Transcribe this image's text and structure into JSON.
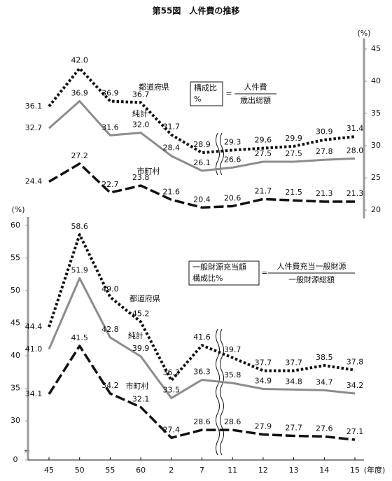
{
  "chart_data": [
    {
      "type": "line",
      "title": "第55図　人件費の推移",
      "ylabel": "(%)",
      "yaxis": "right",
      "ylim": [
        20,
        45
      ],
      "yticks": [
        20,
        25,
        30,
        35,
        40,
        45
      ],
      "formula": {
        "left": [
          "構成比",
          "%"
        ],
        "numerator": "人件費",
        "denominator": "歳出総額"
      },
      "series": [
        {
          "name": "都道府県",
          "color": "#111111",
          "style": "dotted",
          "values": [
            36.1,
            42.0,
            36.9,
            36.7,
            31.7,
            28.9,
            29.3,
            29.6,
            29.9,
            30.9,
            31.4
          ],
          "value_labels": [
            "36.1",
            "42.0",
            "36.9",
            "36.7",
            "31.7",
            "28.9",
            "29.3",
            "29.6",
            "29.9",
            "30.9",
            "31.4"
          ]
        },
        {
          "name": "純計",
          "color": "#8c8c8c",
          "style": "solid",
          "values": [
            32.7,
            36.9,
            31.6,
            32.0,
            28.4,
            26.1,
            26.6,
            27.5,
            27.5,
            27.8,
            28.0
          ],
          "value_labels": [
            "32.7",
            "36.9",
            "31.6",
            "32.0",
            "28.4",
            "26.1",
            "26.6",
            "27.5",
            "27.5",
            "27.8",
            "28.0"
          ]
        },
        {
          "name": "市町村",
          "color": "#111111",
          "style": "dashed",
          "values": [
            24.4,
            27.2,
            22.7,
            23.8,
            21.6,
            20.4,
            20.6,
            21.7,
            21.5,
            21.3,
            21.3
          ],
          "value_labels": [
            "24.4",
            "27.2",
            "22.7",
            "23.8",
            "21.6",
            "20.4",
            "20.6",
            "21.7",
            "21.5",
            "21.3",
            "21.3"
          ]
        }
      ]
    },
    {
      "type": "line",
      "ylabel": "(%)",
      "yaxis": "left",
      "xlabel": "(年度)",
      "categories": [
        "45",
        "50",
        "55",
        "60",
        "2",
        "7",
        "11",
        "12",
        "13",
        "14",
        "15"
      ],
      "ylim": [
        0,
        60
      ],
      "ybreak": [
        0,
        27
      ],
      "yticks": [
        0,
        30,
        35,
        40,
        45,
        50,
        55,
        60
      ],
      "formula": {
        "left": [
          "一般財源充当額",
          "構成比%"
        ],
        "numerator": "人件費充当一般財源",
        "denominator": "一般財源総額"
      },
      "series": [
        {
          "name": "都道府県",
          "color": "#111111",
          "style": "dotted",
          "values": [
            44.4,
            58.6,
            49.0,
            45.2,
            36.2,
            41.6,
            39.7,
            37.7,
            37.7,
            38.5,
            37.8
          ],
          "value_labels": [
            "44.4",
            "58.6",
            "49.0",
            "45.2",
            "36.2",
            "41.6",
            "39.7",
            "37.7",
            "37.7",
            "38.5",
            "37.8"
          ]
        },
        {
          "name": "純計",
          "color": "#8c8c8c",
          "style": "solid",
          "values": [
            41.0,
            51.9,
            42.8,
            39.9,
            33.5,
            36.3,
            35.8,
            34.9,
            34.8,
            34.7,
            34.2
          ],
          "value_labels": [
            "41.0",
            "51.9",
            "42.8",
            "39.9",
            "33.5",
            "36.3",
            "35.8",
            "34.9",
            "34.8",
            "34.7",
            "34.2"
          ]
        },
        {
          "name": "市町村",
          "color": "#111111",
          "style": "dashed",
          "values": [
            34.1,
            41.5,
            34.2,
            32.1,
            27.4,
            28.6,
            28.6,
            27.9,
            27.7,
            27.6,
            27.1
          ],
          "value_labels": [
            "34.1",
            "41.5",
            "34.2",
            "32.1",
            "27.4",
            "28.6",
            "28.6",
            "27.9",
            "27.7",
            "27.6",
            "27.1"
          ]
        }
      ]
    }
  ]
}
